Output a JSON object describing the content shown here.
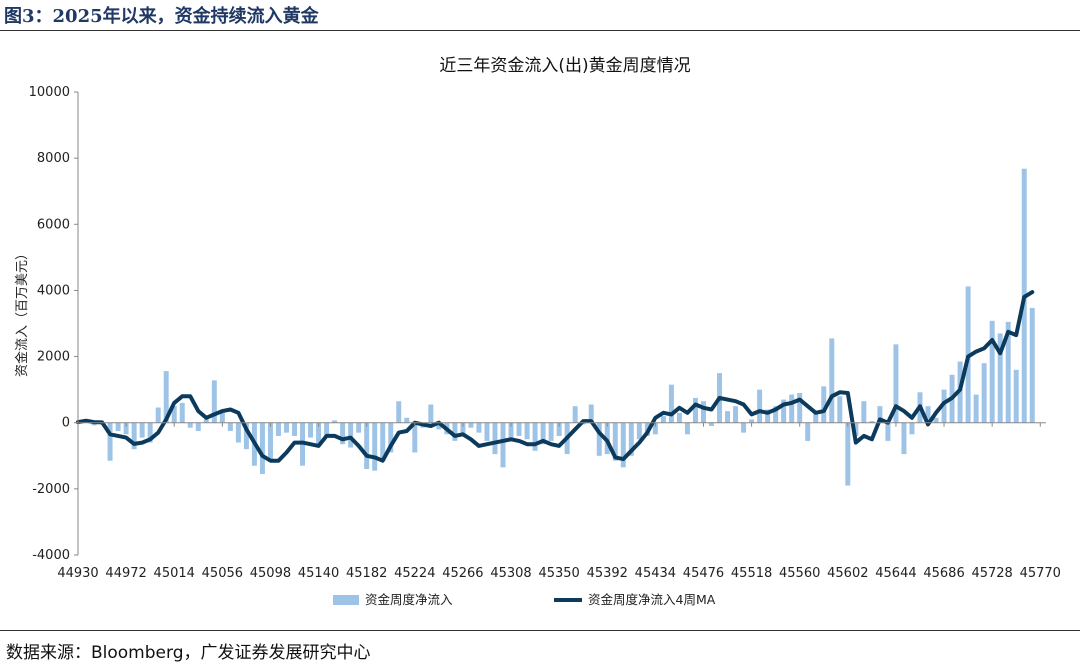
{
  "figure_title": "图3：2025年以来，资金持续流入黄金",
  "source": "数据来源：Bloomberg，广发证券发展研究中心",
  "chart_data": {
    "type": "bar",
    "title": "近三年资金流入(出)黄金周度情况",
    "ylabel": "资金流入（百万美元）",
    "xlabel": "",
    "ylim": [
      -4000,
      10000
    ],
    "yticks": [
      -4000,
      -2000,
      0,
      2000,
      4000,
      6000,
      8000,
      10000
    ],
    "xlim": [
      44930,
      45775
    ],
    "xticks": [
      44930,
      44972,
      45014,
      45056,
      45098,
      45140,
      45182,
      45224,
      45266,
      45308,
      45350,
      45392,
      45434,
      45476,
      45518,
      45560,
      45602,
      45644,
      45686,
      45728,
      45770
    ],
    "colors": {
      "bar": "#9dc3e6",
      "line": "#0b3a5c"
    },
    "legend": [
      "资金周度净流入",
      "资金周度净流入4周MA"
    ],
    "start_x": 44930,
    "step_x": 7,
    "series": [
      {
        "name": "资金周度净流入",
        "type": "bar",
        "values": [
          20,
          100,
          -80,
          0,
          -1150,
          -250,
          -350,
          -800,
          -450,
          -600,
          460,
          1560,
          500,
          600,
          -150,
          -250,
          100,
          1280,
          300,
          -250,
          -600,
          -800,
          -1300,
          -1550,
          -1150,
          -400,
          -300,
          -400,
          -1300,
          -450,
          -650,
          -450,
          70,
          -650,
          -750,
          -300,
          -1400,
          -1450,
          -1150,
          -900,
          650,
          150,
          -900,
          -150,
          550,
          -200,
          -350,
          -550,
          -400,
          -150,
          -300,
          -550,
          -950,
          -1350,
          -500,
          -400,
          -500,
          -850,
          -650,
          -550,
          -400,
          -950,
          500,
          -50,
          550,
          -1000,
          -950,
          -1150,
          -1350,
          -1000,
          -500,
          -400,
          -350,
          200,
          1150,
          300,
          -350,
          750,
          650,
          -100,
          1500,
          350,
          500,
          -300,
          100,
          1000,
          400,
          500,
          700,
          850,
          900,
          -550,
          350,
          1100,
          2550,
          800,
          -1900,
          -400,
          650,
          50,
          500,
          -550,
          2370,
          -950,
          -350,
          920,
          500,
          150,
          1000,
          1450,
          1850,
          4120,
          850,
          1800,
          3080,
          2700,
          3050,
          1600,
          7680,
          3470
        ]
      },
      {
        "name": "资金周度净流入4周MA",
        "type": "line",
        "values": [
          20,
          60,
          20,
          10,
          -350,
          -400,
          -450,
          -640,
          -600,
          -500,
          -300,
          100,
          600,
          800,
          800,
          350,
          150,
          250,
          350,
          400,
          300,
          -200,
          -600,
          -1000,
          -1150,
          -1150,
          -900,
          -600,
          -600,
          -650,
          -700,
          -400,
          -400,
          -500,
          -450,
          -700,
          -1000,
          -1050,
          -1150,
          -700,
          -300,
          -250,
          0,
          -50,
          -100,
          0,
          -200,
          -400,
          -350,
          -500,
          -700,
          -650,
          -600,
          -550,
          -500,
          -550,
          -650,
          -650,
          -550,
          -650,
          -700,
          -450,
          -200,
          50,
          50,
          -300,
          -550,
          -1050,
          -1100,
          -850,
          -600,
          -300,
          150,
          300,
          250,
          450,
          300,
          550,
          450,
          400,
          750,
          700,
          650,
          550,
          250,
          350,
          300,
          400,
          550,
          600,
          700,
          500,
          300,
          350,
          800,
          920,
          900,
          -600,
          -400,
          -500,
          100,
          0,
          500,
          350,
          150,
          500,
          -50,
          300,
          600,
          750,
          1000,
          2000,
          2150,
          2250,
          2500,
          2100,
          2750,
          2650,
          3800,
          3950
        ]
      }
    ]
  }
}
